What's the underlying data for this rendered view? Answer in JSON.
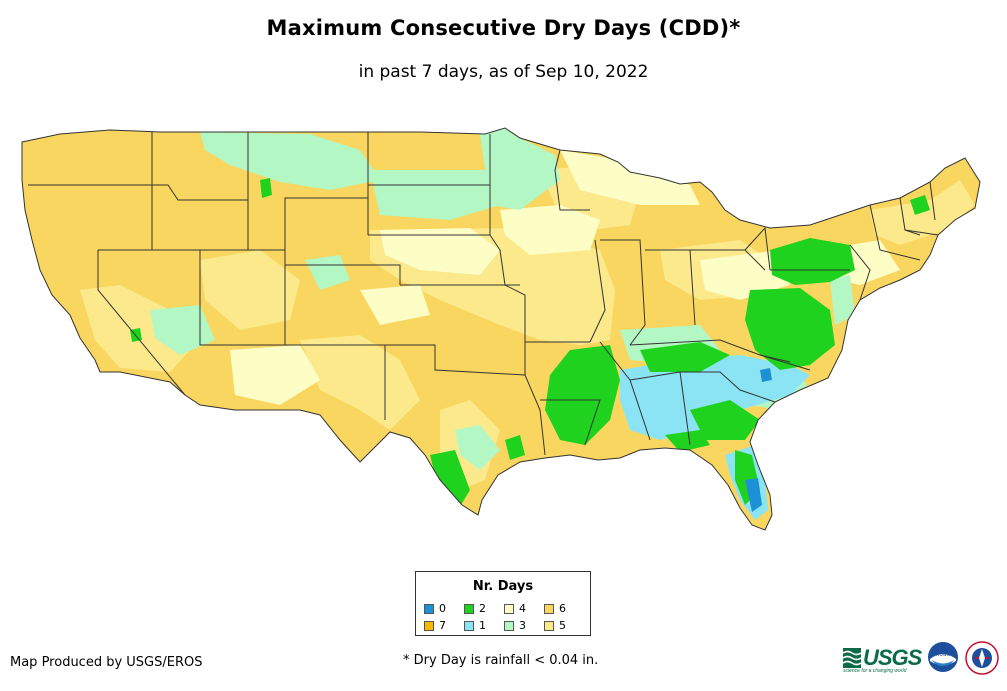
{
  "title": "Maximum Consecutive Dry Days (CDD)*",
  "subtitle": "in past 7 days, as of Sep 10, 2022",
  "legend": {
    "title": "Nr. Days",
    "items": [
      {
        "label": "0",
        "color": "#1e90d6"
      },
      {
        "label": "2",
        "color": "#1ed21e"
      },
      {
        "label": "4",
        "color": "#fdfdc6"
      },
      {
        "label": "6",
        "color": "#f9d65f"
      },
      {
        "label": "7",
        "color": "#f4b800"
      },
      {
        "label": "1",
        "color": "#8ae4f4"
      },
      {
        "label": "3",
        "color": "#b2f7c4"
      },
      {
        "label": "5",
        "color": "#fbe98c"
      }
    ]
  },
  "credit": "Map Produced by USGS/EROS",
  "footnote": "* Dry Day is rainfall < 0.04 in.",
  "logos": {
    "usgs": "USGS",
    "usgs_tagline": "science for a changing world",
    "noaa_label": "noaa"
  },
  "map": {
    "region": "Contiguous United States",
    "colors": {
      "boundary": "#333333",
      "zero": "#1e90d6",
      "one": "#8ae4f4",
      "two": "#1ed21e",
      "three": "#b2f7c4",
      "four": "#fdfdc6",
      "five": "#fbe98c",
      "six": "#f9d65f"
    }
  }
}
